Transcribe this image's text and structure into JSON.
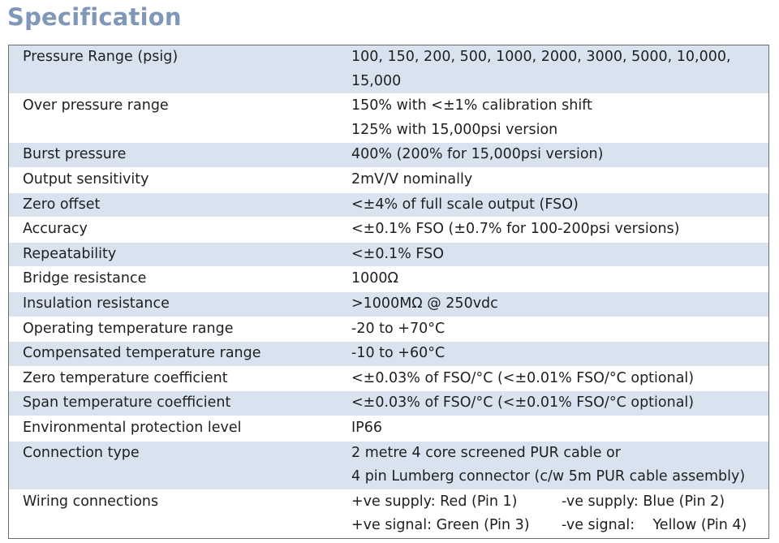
{
  "title": "Specification",
  "rows": [
    {
      "label": "Pressure Range (psig)",
      "lines": [
        "100, 150, 200, 500, 1000, 2000, 3000, 5000, 10,000,",
        "15,000"
      ]
    },
    {
      "label": "Over pressure range",
      "lines": [
        "150% with <±1% calibration shift",
        "125% with 15,000psi version"
      ]
    },
    {
      "label": "Burst pressure",
      "lines": [
        "400% (200% for 15,000psi version)"
      ]
    },
    {
      "label": "Output sensitivity",
      "lines": [
        "2mV/V nominally"
      ]
    },
    {
      "label": "Zero offset",
      "lines": [
        "<±4% of full scale output (FSO)"
      ]
    },
    {
      "label": "Accuracy",
      "lines": [
        "<±0.1% FSO (±0.7% for 100-200psi versions)"
      ]
    },
    {
      "label": "Repeatability",
      "lines": [
        "<±0.1% FSO"
      ]
    },
    {
      "label": "Bridge resistance",
      "lines": [
        "1000Ω"
      ]
    },
    {
      "label": "Insulation resistance",
      "lines": [
        ">1000MΩ @ 250vdc"
      ]
    },
    {
      "label": "Operating temperature range",
      "lines": [
        "-20 to +70°C"
      ]
    },
    {
      "label": "Compensated temperature range",
      "lines": [
        "-10 to +60°C"
      ]
    },
    {
      "label": "Zero temperature coefficient",
      "lines": [
        "<±0.03% of FSO/°C (<±0.01% FSO/°C optional)"
      ]
    },
    {
      "label": "Span temperature coefficient",
      "lines": [
        "<±0.03% of FSO/°C (<±0.01% FSO/°C optional)"
      ]
    },
    {
      "label": "Environmental protection level",
      "lines": [
        "IP66"
      ]
    },
    {
      "label": "Connection type",
      "lines": [
        "2 metre 4 core screened PUR cable or",
        "4 pin Lumberg connector (c/w 5m PUR cable assembly)"
      ]
    }
  ],
  "wiring": {
    "label": "Wiring connections",
    "cells": [
      "+ve supply: Red (Pin 1)",
      "-ve supply: Blue (Pin 2)",
      "+ve signal: Green (Pin 3)",
      "-ve signal:    Yellow (Pin 4)"
    ]
  },
  "colors": {
    "title": "#7f97b9",
    "shaded_row": "#d9e3f0",
    "border": "#6d6d6d"
  }
}
